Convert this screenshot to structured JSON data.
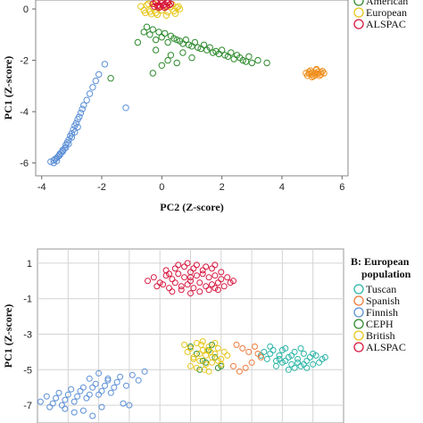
{
  "chart_data": [
    {
      "type": "scatter",
      "title": "",
      "xlabel": "PC2 (Z-score)",
      "ylabel": "PC1 (Z-score)",
      "xlim": [
        -4.2,
        6.2
      ],
      "ylim": [
        -6.5,
        0.35
      ],
      "xticks": [
        -4,
        -2,
        0,
        2,
        4,
        6
      ],
      "yticks": [
        0,
        -2,
        -4,
        -6
      ],
      "grid": false,
      "legend_title": "",
      "legend_position": "right",
      "series": [
        {
          "name": "",
          "color": "#5b8fd6",
          "x": [
            -3.7,
            -3.6,
            -3.55,
            -3.5,
            -3.45,
            -3.4,
            -3.35,
            -3.3,
            -3.25,
            -3.2,
            -3.15,
            -3.1,
            -3.05,
            -3.0,
            -2.95,
            -2.9,
            -2.85,
            -2.8,
            -2.75,
            -2.7,
            -2.65,
            -2.6,
            -2.5,
            -2.4,
            -2.3,
            -2.2,
            -2.1,
            -1.9,
            -1.2,
            -3.4,
            -3.3,
            -3.2,
            -3.1,
            -3.0,
            -2.9,
            -2.8,
            -3.6,
            -3.5
          ],
          "y": [
            -5.95,
            -5.9,
            -5.85,
            -5.8,
            -5.75,
            -5.7,
            -5.6,
            -5.5,
            -5.45,
            -5.3,
            -5.2,
            -5.1,
            -4.95,
            -4.85,
            -4.7,
            -4.55,
            -4.45,
            -4.3,
            -4.2,
            -4.05,
            -3.9,
            -3.75,
            -3.55,
            -3.3,
            -3.05,
            -2.8,
            -2.55,
            -2.15,
            -3.85,
            -5.65,
            -5.55,
            -5.4,
            -5.25,
            -5.0,
            -4.8,
            -4.6,
            -6.0,
            -5.92
          ]
        },
        {
          "name": "American",
          "color": "#2e8b2e",
          "x": [
            -0.6,
            -0.5,
            -0.4,
            -0.3,
            -0.2,
            -0.1,
            0.0,
            0.1,
            0.2,
            0.3,
            0.4,
            0.5,
            0.6,
            0.7,
            0.8,
            0.9,
            1.0,
            1.1,
            1.2,
            1.3,
            1.4,
            1.5,
            1.6,
            1.7,
            1.8,
            1.9,
            2.0,
            2.1,
            2.2,
            2.3,
            2.4,
            2.5,
            2.6,
            2.7,
            2.8,
            2.9,
            3.0,
            3.2,
            3.5,
            -0.8,
            -0.2,
            0.0,
            0.3,
            0.5,
            1.0,
            -1.7,
            -0.3,
            0.2,
            0.7
          ],
          "y": [
            -0.9,
            -0.7,
            -1.0,
            -0.8,
            -1.2,
            -0.9,
            -1.1,
            -0.95,
            -1.3,
            -1.05,
            -1.15,
            -1.2,
            -1.25,
            -1.35,
            -1.2,
            -1.4,
            -1.45,
            -1.3,
            -1.5,
            -1.55,
            -1.4,
            -1.6,
            -1.5,
            -1.7,
            -1.65,
            -1.75,
            -1.6,
            -1.8,
            -1.85,
            -1.7,
            -1.95,
            -1.8,
            -1.9,
            -2.0,
            -2.05,
            -1.85,
            -2.1,
            -2.0,
            -2.1,
            -1.3,
            -1.6,
            -2.2,
            -1.8,
            -2.1,
            -1.9,
            -2.7,
            -2.5,
            -2.0,
            -1.7
          ]
        },
        {
          "name": "European",
          "color": "#e6c619",
          "x": [
            -0.7,
            -0.6,
            -0.5,
            -0.4,
            -0.3,
            -0.2,
            -0.1,
            0.0,
            0.1,
            0.2,
            0.3,
            0.4,
            0.5,
            0.6,
            -0.55,
            -0.45,
            -0.35,
            0.35,
            0.45,
            0.55,
            -0.15,
            0.15,
            0.0,
            -0.25,
            0.25
          ],
          "y": [
            0.1,
            -0.05,
            0.15,
            -0.1,
            0.05,
            -0.15,
            0.1,
            -0.05,
            0.12,
            -0.12,
            0.08,
            -0.08,
            0.05,
            0.0,
            -0.15,
            0.2,
            -0.2,
            0.18,
            -0.18,
            0.1,
            -0.22,
            -0.25,
            0.22,
            0.2,
            0.15
          ]
        },
        {
          "name": "ALSPAC",
          "color": "#d7173f",
          "x": [
            -0.3,
            -0.2,
            -0.1,
            0.0,
            0.1,
            0.2,
            0.3,
            -0.25,
            -0.15,
            -0.05,
            0.05,
            0.15,
            0.25,
            -0.2,
            0.2,
            0.0,
            -0.1,
            0.1
          ],
          "y": [
            0.2,
            0.25,
            0.15,
            0.22,
            0.18,
            0.24,
            0.2,
            0.1,
            0.12,
            0.08,
            0.14,
            0.1,
            0.16,
            0.28,
            0.28,
            0.3,
            0.05,
            0.05
          ]
        },
        {
          "name": "",
          "color": "#f0901f",
          "x": [
            4.8,
            4.9,
            5.0,
            5.1,
            5.2,
            5.3,
            5.4,
            4.85,
            4.95,
            5.05,
            5.15,
            5.25,
            5.35,
            4.9,
            5.0,
            5.1,
            5.2,
            5.3,
            5.0,
            5.15
          ],
          "y": [
            -2.5,
            -2.45,
            -2.55,
            -2.5,
            -2.45,
            -2.55,
            -2.5,
            -2.6,
            -2.4,
            -2.62,
            -2.38,
            -2.6,
            -2.42,
            -2.52,
            -2.48,
            -2.58,
            -2.52,
            -2.47,
            -2.65,
            -2.35
          ]
        }
      ]
    },
    {
      "type": "scatter",
      "title": "",
      "xlabel": "",
      "ylabel": "PC1 (Z-score)",
      "ylim": [
        -8,
        1.8
      ],
      "xlim": [
        0,
        10
      ],
      "yticks": [
        1,
        -1,
        -3,
        -5,
        -7
      ],
      "grid": true,
      "legend_title": "B: European population",
      "legend_position": "right",
      "series": [
        {
          "name": "Tuscan",
          "color": "#2bb5a8",
          "x": [
            7.3,
            7.4,
            7.5,
            7.6,
            7.7,
            7.8,
            7.9,
            8.0,
            8.1,
            8.2,
            8.3,
            8.4,
            8.5,
            8.6,
            8.7,
            8.8,
            8.9,
            9.0,
            9.1,
            9.2,
            9.3,
            9.4,
            7.6,
            7.8,
            8.0,
            8.2,
            8.4,
            8.6,
            8.8,
            9.0,
            7.9,
            8.1,
            8.3,
            8.5,
            8.7
          ],
          "y": [
            -4.2,
            -4.0,
            -4.4,
            -4.1,
            -3.9,
            -4.5,
            -4.2,
            -4.6,
            -3.8,
            -4.3,
            -4.7,
            -4.0,
            -4.4,
            -4.8,
            -4.1,
            -4.5,
            -4.3,
            -4.7,
            -4.2,
            -4.6,
            -4.4,
            -4.3,
            -3.7,
            -4.8,
            -3.9,
            -5.0,
            -4.9,
            -3.8,
            -4.9,
            -4.1,
            -4.4,
            -4.5,
            -4.2,
            -4.6,
            -4.7
          ]
        },
        {
          "name": "Spanish",
          "color": "#f07a3a",
          "x": [
            6.5,
            6.7,
            6.9,
            7.1,
            7.3,
            7.0,
            6.8,
            6.6,
            7.2,
            6.4
          ],
          "y": [
            -3.6,
            -3.8,
            -4.0,
            -3.7,
            -4.3,
            -4.6,
            -4.9,
            -5.1,
            -4.1,
            -4.8
          ]
        },
        {
          "name": "Finnish",
          "color": "#5b8fd6",
          "x": [
            0.1,
            0.3,
            0.5,
            0.7,
            0.9,
            1.1,
            1.3,
            1.5,
            1.7,
            1.9,
            2.1,
            2.3,
            2.5,
            2.7,
            2.9,
            3.1,
            3.3,
            3.5,
            0.4,
            0.6,
            0.8,
            1.0,
            1.2,
            1.4,
            1.6,
            1.8,
            2.0,
            2.2,
            2.4,
            2.6,
            1.5,
            1.8,
            2.1,
            1.2,
            0.9,
            2.8,
            3.0,
            1.7,
            2.0,
            2.3
          ],
          "y": [
            -6.8,
            -6.5,
            -6.9,
            -6.3,
            -6.7,
            -6.1,
            -6.5,
            -6.0,
            -6.4,
            -5.8,
            -6.2,
            -5.6,
            -6.0,
            -5.4,
            -5.9,
            -5.3,
            -5.6,
            -5.1,
            -7.1,
            -6.6,
            -7.0,
            -6.4,
            -6.8,
            -6.2,
            -6.6,
            -6.0,
            -6.4,
            -5.9,
            -6.3,
            -5.7,
            -7.3,
            -7.6,
            -7.1,
            -7.4,
            -7.2,
            -6.9,
            -7.0,
            -5.5,
            -5.2,
            -5.5
          ]
        },
        {
          "name": "CEPH",
          "color": "#2e8b2e",
          "x": [
            5.0,
            5.2,
            5.4,
            5.6,
            5.8,
            6.0,
            5.3,
            5.5,
            5.7,
            5.9
          ],
          "y": [
            -3.7,
            -4.1,
            -4.5,
            -3.9,
            -4.3,
            -4.8,
            -5.0,
            -4.6,
            -3.6,
            -4.9
          ]
        },
        {
          "name": "British",
          "color": "#e6c619",
          "x": [
            4.8,
            4.9,
            5.0,
            5.1,
            5.2,
            5.3,
            5.4,
            5.5,
            5.6,
            5.7,
            5.8,
            5.9,
            6.0,
            6.1,
            6.2,
            5.0,
            5.2,
            5.4,
            5.6,
            5.8,
            6.0,
            5.1,
            5.3,
            5.5,
            5.7,
            5.9,
            5.35,
            5.45,
            5.55,
            5.65
          ],
          "y": [
            -3.6,
            -4.0,
            -3.8,
            -4.3,
            -3.5,
            -4.5,
            -3.9,
            -4.2,
            -3.7,
            -4.6,
            -4.1,
            -3.8,
            -4.4,
            -4.0,
            -4.2,
            -4.8,
            -4.9,
            -3.4,
            -5.1,
            -3.5,
            -4.7,
            -4.4,
            -4.1,
            -4.7,
            -4.3,
            -4.5,
            -3.6,
            -5.0,
            -3.9,
            -4.0
          ]
        },
        {
          "name": "ALSPAC",
          "color": "#d7173f",
          "x": [
            3.6,
            3.8,
            4.0,
            4.2,
            4.4,
            4.6,
            4.8,
            5.0,
            5.2,
            5.4,
            5.6,
            5.8,
            6.0,
            6.2,
            6.4,
            3.9,
            4.1,
            4.3,
            4.5,
            4.7,
            4.9,
            5.1,
            5.3,
            5.5,
            5.7,
            5.9,
            6.1,
            6.3,
            4.2,
            4.5,
            4.8,
            5.1,
            5.4,
            5.7,
            6.0,
            4.4,
            4.7,
            5.0,
            5.3,
            5.6,
            5.9,
            4.6,
            4.9,
            5.2,
            5.5,
            5.8,
            5.0,
            5.0,
            4.3,
            5.8
          ],
          "y": [
            0.0,
            0.2,
            -0.1,
            0.3,
            0.1,
            0.4,
            0.2,
            0.5,
            0.3,
            0.4,
            0.2,
            0.3,
            0.1,
            0.2,
            0.0,
            -0.3,
            -0.2,
            -0.4,
            -0.1,
            -0.3,
            -0.2,
            -0.4,
            -0.1,
            -0.3,
            -0.2,
            -0.1,
            -0.3,
            -0.1,
            0.6,
            0.7,
            0.8,
            0.7,
            0.6,
            0.7,
            0.5,
            -0.6,
            -0.5,
            -0.7,
            -0.6,
            -0.5,
            -0.5,
            0.9,
            1.0,
            0.9,
            0.8,
            0.9,
            0.0,
            0.2,
            0.4,
            -0.4
          ]
        }
      ]
    }
  ]
}
